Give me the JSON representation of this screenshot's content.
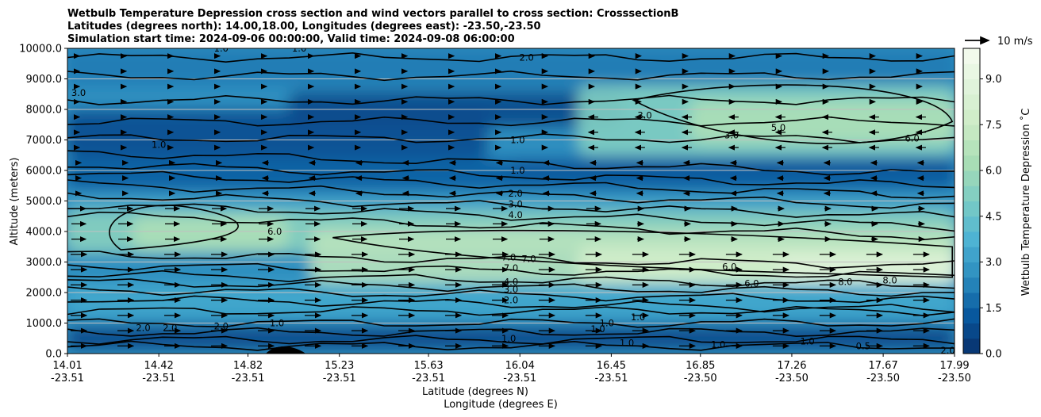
{
  "chart_data": {
    "type": "contour_cross_section",
    "title_lines": [
      "Wetbulb Temperature Depression cross section and wind vectors parallel to cross section: CrosssectionB",
      "Latitudes (degrees north): 14.00,18.00, Longitudes (degrees east): -23.50,-23.50",
      "Simulation start time: 2024-09-06 00:00:00, Valid time: 2024-09-08 06:00:00"
    ],
    "ylabel": "Altitude (meters)",
    "xlabel_lines": [
      "Latitude (degrees N)",
      "Longitude (degrees E)"
    ],
    "ylim": [
      0,
      10000
    ],
    "y_ticks": [
      "0.0",
      "1000.0",
      "2000.0",
      "3000.0",
      "4000.0",
      "5000.0",
      "6000.0",
      "7000.0",
      "8000.0",
      "9000.0",
      "10000.0"
    ],
    "x_ticks": [
      {
        "lat": "14.01",
        "lon": "-23.51"
      },
      {
        "lat": "14.42",
        "lon": "-23.51"
      },
      {
        "lat": "14.82",
        "lon": "-23.51"
      },
      {
        "lat": "15.23",
        "lon": "-23.51"
      },
      {
        "lat": "15.63",
        "lon": "-23.51"
      },
      {
        "lat": "16.04",
        "lon": "-23.51"
      },
      {
        "lat": "16.45",
        "lon": "-23.51"
      },
      {
        "lat": "16.85",
        "lon": "-23.50"
      },
      {
        "lat": "17.26",
        "lon": "-23.50"
      },
      {
        "lat": "17.67",
        "lon": "-23.50"
      },
      {
        "lat": "17.99",
        "lon": "-23.50"
      }
    ],
    "colorbar": {
      "label": "Wetbulb Temperature Depression ˚C",
      "ticks": [
        "0.0",
        "1.5",
        "3.0",
        "4.5",
        "6.0",
        "7.5",
        "9.0"
      ],
      "range": [
        0,
        10
      ]
    },
    "quiver_key": "10 m/s",
    "contour_labels": [
      {
        "text": "2.0",
        "lat": 16.07,
        "alt": 9700
      },
      {
        "text": "1.0",
        "lat": 14.7,
        "alt": 10000
      },
      {
        "text": "1.0",
        "lat": 15.05,
        "alt": 10000
      },
      {
        "text": "3.0",
        "lat": 14.06,
        "alt": 8550
      },
      {
        "text": "1.0",
        "lat": 14.42,
        "alt": 6850
      },
      {
        "text": "3.0",
        "lat": 16.6,
        "alt": 7800
      },
      {
        "text": "3.0",
        "lat": 16.99,
        "alt": 7150
      },
      {
        "text": "5.0",
        "lat": 17.2,
        "alt": 7400
      },
      {
        "text": "6.0",
        "lat": 17.8,
        "alt": 7050
      },
      {
        "text": "1.0",
        "lat": 16.03,
        "alt": 7000
      },
      {
        "text": "1.0",
        "lat": 16.03,
        "alt": 6000
      },
      {
        "text": "2.0",
        "lat": 16.02,
        "alt": 5250
      },
      {
        "text": "3.0",
        "lat": 16.02,
        "alt": 4900
      },
      {
        "text": "4.0",
        "lat": 16.02,
        "alt": 4550
      },
      {
        "text": "6.0",
        "lat": 14.94,
        "alt": 4000
      },
      {
        "text": "7.0",
        "lat": 15.99,
        "alt": 3150
      },
      {
        "text": "7.0",
        "lat": 16.08,
        "alt": 3100
      },
      {
        "text": "7.0",
        "lat": 16.0,
        "alt": 2800
      },
      {
        "text": "6.0",
        "lat": 17.08,
        "alt": 2300
      },
      {
        "text": "6.0",
        "lat": 16.98,
        "alt": 2850
      },
      {
        "text": "8.0",
        "lat": 17.5,
        "alt": 2350
      },
      {
        "text": "8.0",
        "lat": 17.7,
        "alt": 2400
      },
      {
        "text": "4.0",
        "lat": 16.0,
        "alt": 2350
      },
      {
        "text": "3.0",
        "lat": 16.0,
        "alt": 2100
      },
      {
        "text": "2.0",
        "lat": 16.0,
        "alt": 1750
      },
      {
        "text": "2.0",
        "lat": 14.35,
        "alt": 850
      },
      {
        "text": "2.0",
        "lat": 14.47,
        "alt": 850
      },
      {
        "text": "2.0",
        "lat": 14.7,
        "alt": 900
      },
      {
        "text": "1.0",
        "lat": 14.95,
        "alt": 1000
      },
      {
        "text": "1.0",
        "lat": 15.99,
        "alt": 500
      },
      {
        "text": "1.0",
        "lat": 16.43,
        "alt": 1000
      },
      {
        "text": "1.0",
        "lat": 16.39,
        "alt": 800
      },
      {
        "text": "1.0",
        "lat": 16.52,
        "alt": 350
      },
      {
        "text": "1.0",
        "lat": 16.57,
        "alt": 1200
      },
      {
        "text": "1.0",
        "lat": 16.93,
        "alt": 300
      },
      {
        "text": "1.0",
        "lat": 17.33,
        "alt": 400
      },
      {
        "text": "0.5",
        "lat": 17.58,
        "alt": 250
      },
      {
        "text": "2.0",
        "lat": 17.96,
        "alt": 100
      }
    ],
    "colors": {
      "colormap_low": "#08306b",
      "colormap_high": "#f7fcf0",
      "contour": "#000000",
      "grid": "#c0c0c0"
    }
  }
}
